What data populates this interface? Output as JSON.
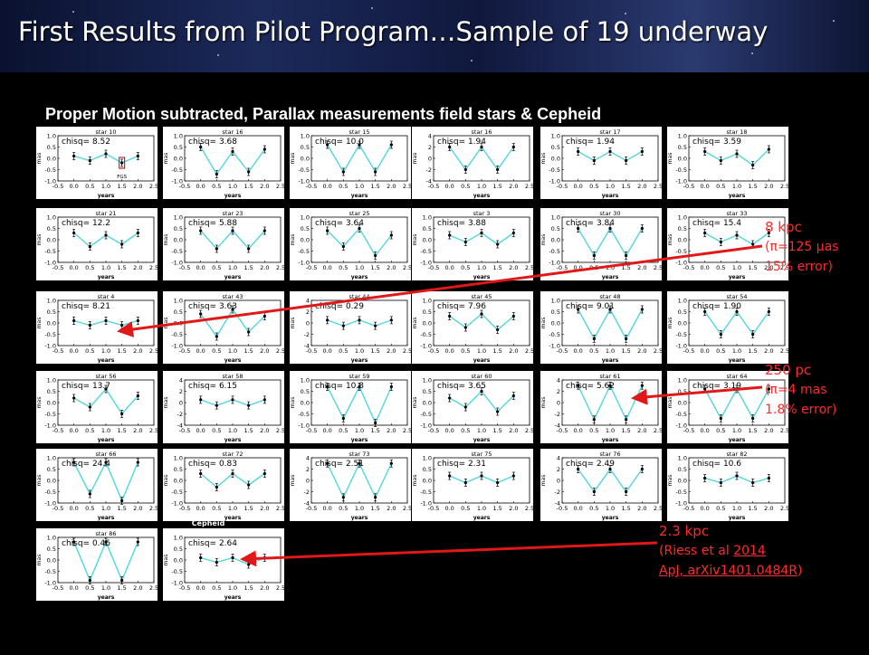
{
  "title": "First Results from Pilot Program…Sample of 19 underway",
  "subtitle": "Proper Motion subtracted, Parallax measurements field stars & Cepheid",
  "colors": {
    "line": "#4fd6e0",
    "panel_bg": "#ffffff",
    "arrow": "#e01818",
    "annotation": "#ff2a2a"
  },
  "cepheid_label": "Cepheid",
  "annotations": {
    "kpc8": {
      "line1": "8 kpc",
      "line2": "(π=125 μas",
      "line3": "15% error)"
    },
    "pc250": {
      "line1": "250 pc",
      "line2": "(π=4 mas",
      "line3": "1.8% error)"
    },
    "kpc23": {
      "line1": "2.3 kpc",
      "line2": "(Riess et al ",
      "line2_link": "2014",
      "line3_link": "ApJ, arXiv1401.0484R",
      "line3_end": ")"
    }
  },
  "chart_data": {
    "type": "line",
    "x": [
      0.0,
      0.5,
      1.0,
      1.5,
      2.0
    ],
    "xlabel": "years",
    "ylabel": "mas",
    "xlim": [
      -0.5,
      2.5
    ],
    "xticks": [
      "-0.5",
      "0.0",
      "0.5",
      "1.0",
      "1.5",
      "2.0",
      "2.5"
    ],
    "panels": [
      {
        "star": "star 10",
        "chisq": "8.52",
        "yticks": [
          "1.0",
          "0.5",
          "0.0",
          "-0.5",
          "-1.0"
        ],
        "ylim": [
          -1.0,
          1.0
        ],
        "values": [
          0.1,
          -0.1,
          0.2,
          -0.2,
          0.1
        ],
        "note": "FGS"
      },
      {
        "star": "star 16",
        "chisq": "3.68",
        "yticks": [
          "1.0",
          "0.5",
          "0.0",
          "-0.5",
          "-1.0"
        ],
        "ylim": [
          -1.0,
          1.0
        ],
        "values": [
          0.5,
          -0.7,
          0.3,
          -0.6,
          0.4
        ]
      },
      {
        "star": "star 15",
        "chisq": "10.0",
        "yticks": [
          "1.0",
          "0.5",
          "0.0",
          "-0.5",
          "-1.0"
        ],
        "ylim": [
          -1.0,
          1.0
        ],
        "values": [
          0.6,
          -0.6,
          0.6,
          -0.6,
          0.6
        ]
      },
      {
        "star": "star 16",
        "chisq": "1.94",
        "yticks": [
          "4",
          "2",
          "0",
          "-2",
          "-4"
        ],
        "ylim": [
          -4,
          4
        ],
        "values": [
          2.0,
          -2.0,
          2.0,
          -2.0,
          2.0
        ]
      },
      {
        "star": "star 17",
        "chisq": "1.94",
        "yticks": [
          "1.0",
          "0.5",
          "0.0",
          "-0.5",
          "-1.0"
        ],
        "ylim": [
          -1.0,
          1.0
        ],
        "values": [
          0.3,
          -0.1,
          0.3,
          -0.1,
          0.3
        ]
      },
      {
        "star": "star 18",
        "chisq": "3.59",
        "yticks": [
          "1.0",
          "0.5",
          "0.0",
          "-0.5",
          "-1.0"
        ],
        "ylim": [
          -1.0,
          1.0
        ],
        "values": [
          0.3,
          -0.1,
          0.2,
          -0.3,
          0.4
        ]
      },
      {
        "star": "star 21",
        "chisq": "12.2",
        "yticks": [
          "1.0",
          "0.5",
          "0.0",
          "-0.5",
          "-1.0"
        ],
        "ylim": [
          -1.0,
          1.0
        ],
        "values": [
          0.3,
          -0.3,
          0.2,
          -0.2,
          0.3
        ]
      },
      {
        "star": "star 23",
        "chisq": "5.88",
        "yticks": [
          "1.0",
          "0.5",
          "0.0",
          "-0.5",
          "-1.0"
        ],
        "ylim": [
          -1.0,
          1.0
        ],
        "values": [
          0.4,
          -0.4,
          0.4,
          -0.4,
          0.4
        ]
      },
      {
        "star": "star 25",
        "chisq": "3.64",
        "yticks": [
          "1.0",
          "0.5",
          "0.0",
          "-0.5",
          "-1.0"
        ],
        "ylim": [
          -1.0,
          1.0
        ],
        "values": [
          0.4,
          -0.3,
          0.5,
          -0.7,
          0.2
        ]
      },
      {
        "star": "star 3",
        "chisq": "3.88",
        "yticks": [
          "1.0",
          "0.5",
          "0.0",
          "-0.5",
          "-1.0"
        ],
        "ylim": [
          -1.0,
          1.0
        ],
        "values": [
          0.2,
          -0.1,
          0.3,
          -0.2,
          0.3
        ]
      },
      {
        "star": "star 30",
        "chisq": "3.84",
        "yticks": [
          "1.0",
          "0.5",
          "0.0",
          "-0.5",
          "-1.0"
        ],
        "ylim": [
          -1.0,
          1.0
        ],
        "values": [
          0.5,
          -0.7,
          0.5,
          -0.7,
          0.5
        ]
      },
      {
        "star": "star 33",
        "chisq": "15.4",
        "yticks": [
          "1.0",
          "0.5",
          "0.0",
          "-0.5",
          "-1.0"
        ],
        "ylim": [
          -1.0,
          1.0
        ],
        "values": [
          0.3,
          -0.1,
          0.2,
          -0.2,
          0.3
        ]
      },
      {
        "star": "star 4",
        "chisq": "8.21",
        "yticks": [
          "1.0",
          "0.5",
          "0.0",
          "-0.5",
          "-1.0"
        ],
        "ylim": [
          -1.0,
          1.0
        ],
        "values": [
          0.1,
          -0.1,
          0.1,
          -0.1,
          0.1
        ]
      },
      {
        "star": "star 43",
        "chisq": "3.63",
        "yticks": [
          "1.0",
          "0.5",
          "0.0",
          "-0.5",
          "-1.0"
        ],
        "ylim": [
          -1.0,
          1.0
        ],
        "values": [
          0.4,
          -0.6,
          0.6,
          -0.4,
          0.3
        ]
      },
      {
        "star": "star 44",
        "chisq": "0.29",
        "yticks": [
          "4",
          "2",
          "0",
          "-2",
          "-4"
        ],
        "ylim": [
          -4,
          4
        ],
        "values": [
          0.5,
          -0.5,
          0.5,
          -0.5,
          0.5
        ]
      },
      {
        "star": "star 45",
        "chisq": "7.96",
        "yticks": [
          "1.0",
          "0.5",
          "0.0",
          "-0.5",
          "-1.0"
        ],
        "ylim": [
          -1.0,
          1.0
        ],
        "values": [
          0.3,
          -0.2,
          0.4,
          -0.3,
          0.3
        ]
      },
      {
        "star": "star 48",
        "chisq": "9.01",
        "yticks": [
          "1.0",
          "0.5",
          "0.0",
          "-0.5",
          "-1.0"
        ],
        "ylim": [
          -1.0,
          1.0
        ],
        "values": [
          0.6,
          -0.7,
          0.6,
          -0.7,
          0.6
        ]
      },
      {
        "star": "star 54",
        "chisq": "1.90",
        "yticks": [
          "1.0",
          "0.5",
          "0.0",
          "-0.5",
          "-1.0"
        ],
        "ylim": [
          -1.0,
          1.0
        ],
        "values": [
          0.5,
          -0.5,
          0.5,
          -0.5,
          0.5
        ]
      },
      {
        "star": "star 56",
        "chisq": "13.7",
        "yticks": [
          "1.0",
          "0.5",
          "0.0",
          "-0.5",
          "-1.0"
        ],
        "ylim": [
          -1.0,
          1.0
        ],
        "values": [
          0.2,
          -0.2,
          0.6,
          -0.5,
          0.3
        ]
      },
      {
        "star": "star 58",
        "chisq": "6.15",
        "yticks": [
          "4",
          "2",
          "0",
          "-2",
          "-4"
        ],
        "ylim": [
          -4,
          4
        ],
        "values": [
          0.5,
          -0.5,
          0.5,
          -0.5,
          0.5
        ]
      },
      {
        "star": "star 59",
        "chisq": "10.8",
        "yticks": [
          "1.0",
          "0.5",
          "0.0",
          "-0.5",
          "-1.0"
        ],
        "ylim": [
          -1.0,
          1.0
        ],
        "values": [
          0.7,
          -0.7,
          0.7,
          -0.9,
          0.7
        ]
      },
      {
        "star": "star 60",
        "chisq": "3.65",
        "yticks": [
          "1.0",
          "0.5",
          "0.0",
          "-0.5",
          "-1.0"
        ],
        "ylim": [
          -1.0,
          1.0
        ],
        "values": [
          0.2,
          -0.2,
          0.5,
          -0.4,
          0.3
        ]
      },
      {
        "star": "star 61",
        "chisq": "5.62",
        "yticks": [
          "4",
          "2",
          "0",
          "-2",
          "-4"
        ],
        "ylim": [
          -4,
          4
        ],
        "values": [
          3.0,
          -3.0,
          3.0,
          -3.0,
          3.0
        ]
      },
      {
        "star": "star 64",
        "chisq": "3.19",
        "yticks": [
          "1.0",
          "0.5",
          "0.0",
          "-0.5",
          "-1.0"
        ],
        "ylim": [
          -1.0,
          1.0
        ],
        "values": [
          0.6,
          -0.7,
          0.6,
          -0.7,
          0.6
        ]
      },
      {
        "star": "star 66",
        "chisq": "24.4",
        "yticks": [
          "1.0",
          "0.5",
          "0.0",
          "-0.5",
          "-1.0"
        ],
        "ylim": [
          -1.0,
          1.0
        ],
        "values": [
          0.8,
          -0.6,
          0.8,
          -0.9,
          0.8
        ]
      },
      {
        "star": "star 72",
        "chisq": "0.83",
        "yticks": [
          "1.0",
          "0.5",
          "0.0",
          "-0.5",
          "-1.0"
        ],
        "ylim": [
          -1.0,
          1.0
        ],
        "values": [
          0.3,
          -0.3,
          0.3,
          -0.2,
          0.3
        ]
      },
      {
        "star": "star 73",
        "chisq": "2.51",
        "yticks": [
          "4",
          "2",
          "0",
          "-2",
          "-4"
        ],
        "ylim": [
          -4,
          4
        ],
        "values": [
          3.0,
          -3.0,
          3.0,
          -3.0,
          3.0
        ]
      },
      {
        "star": "star 75",
        "chisq": "2.31",
        "yticks": [
          "1.0",
          "0.5",
          "0.0",
          "-0.5",
          "-1.0"
        ],
        "ylim": [
          -1.0,
          1.0
        ],
        "values": [
          0.2,
          -0.1,
          0.2,
          -0.1,
          0.2
        ]
      },
      {
        "star": "star 76",
        "chisq": "2.49",
        "yticks": [
          "4",
          "2",
          "0",
          "-2",
          "-4"
        ],
        "ylim": [
          -4,
          4
        ],
        "values": [
          2.0,
          -2.0,
          2.0,
          -2.0,
          2.0
        ]
      },
      {
        "star": "star 82",
        "chisq": "10.6",
        "yticks": [
          "1.0",
          "0.5",
          "0.0",
          "-0.5",
          "-1.0"
        ],
        "ylim": [
          -1.0,
          1.0
        ],
        "values": [
          0.1,
          -0.1,
          0.2,
          -0.1,
          0.1
        ]
      },
      {
        "star": "star 86",
        "chisq": "0.46",
        "yticks": [
          "1.0",
          "0.5",
          "0.0",
          "-0.5",
          "-1.0"
        ],
        "ylim": [
          -1.0,
          1.0
        ],
        "values": [
          0.8,
          -0.9,
          0.8,
          -0.9,
          0.8
        ]
      },
      {
        "star": "",
        "chisq": "2.64",
        "yticks": [
          "1.0",
          "0.5",
          "0.0",
          "-0.5",
          "-1.0"
        ],
        "ylim": [
          -1.0,
          1.0
        ],
        "values": [
          0.1,
          -0.1,
          0.1,
          -0.2,
          0.1
        ]
      }
    ]
  }
}
